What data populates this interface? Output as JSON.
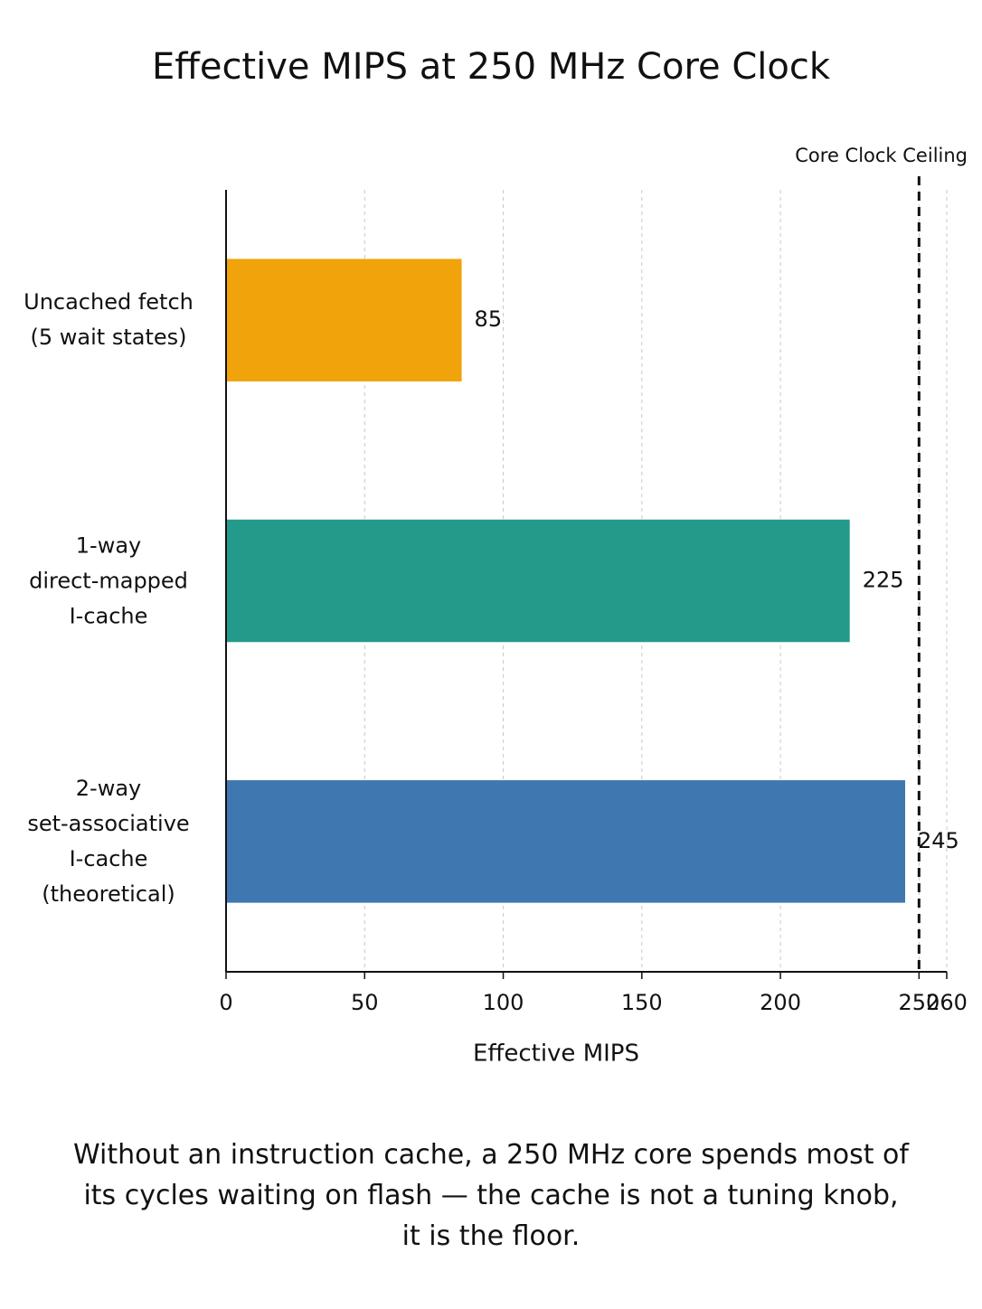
{
  "chart_data": {
    "type": "bar",
    "orientation": "horizontal",
    "title": "Effective MIPS at 250 MHz Core Clock",
    "categories": [
      "Uncached fetch\n(5 wait states)",
      "1-way\ndirect-mapped\nI-cache",
      "2-way\nset-associative\nI-cache (theoretical)"
    ],
    "values": [
      85,
      225,
      245
    ],
    "colors": [
      "#f0a30a",
      "#239a8a",
      "#3f78b0"
    ],
    "xlabel": "Effective MIPS",
    "xlim": [
      0,
      260
    ],
    "xticks": [
      0,
      50,
      100,
      150,
      200,
      250,
      260
    ],
    "grid": true,
    "reference_line": {
      "value": 250,
      "label": "Core Clock Ceiling"
    },
    "caption": "Without an instruction cache, a 250 MHz core spends most of\nits cycles waiting on flash — the cache is not a tuning knob,\nit is the floor."
  }
}
